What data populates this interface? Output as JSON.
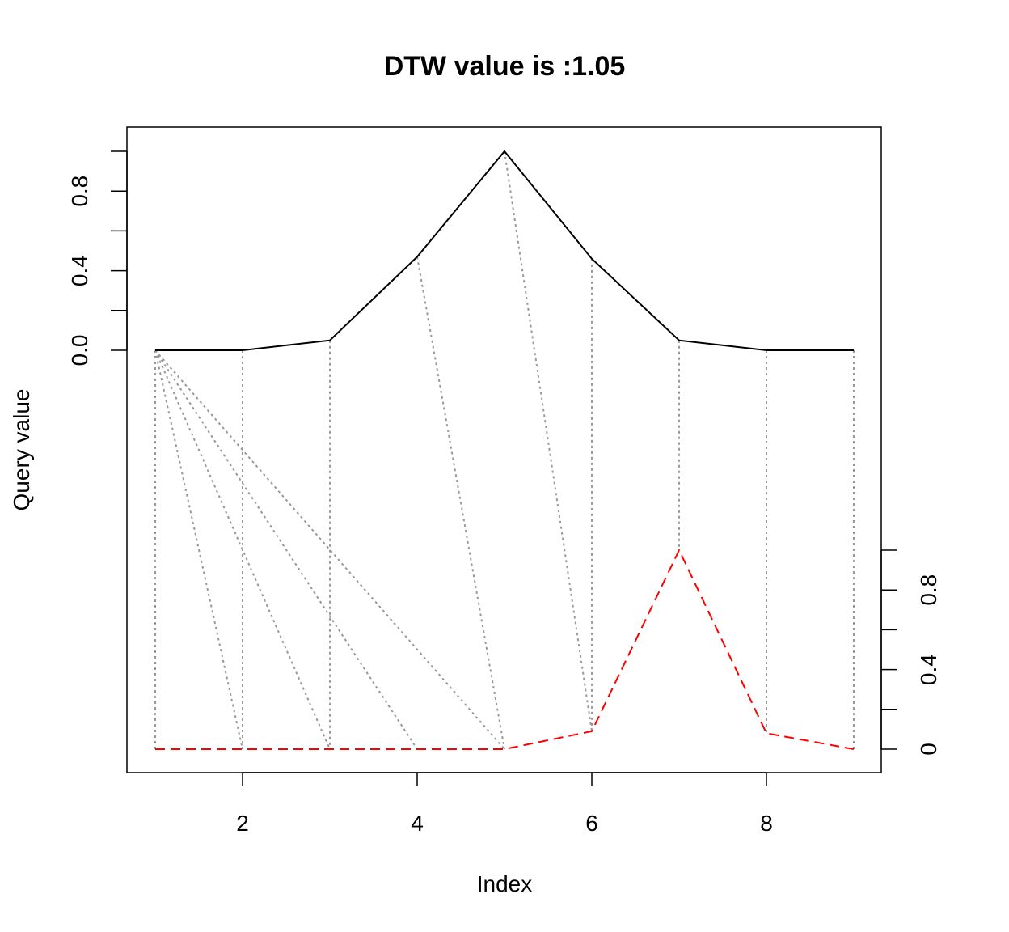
{
  "chart_data": {
    "type": "line",
    "title": "DTW value is :1.05",
    "xlabel": "Index",
    "ylabel": "Query value",
    "x": [
      1,
      2,
      3,
      4,
      5,
      6,
      7,
      8,
      9
    ],
    "xlim": [
      1,
      9
    ],
    "xticks": [
      "2",
      "4",
      "6",
      "8"
    ],
    "grid": false,
    "legend": "none",
    "series": [
      {
        "role": "query",
        "values": [
          0.0,
          0.0,
          0.05,
          0.47,
          1.0,
          0.46,
          0.05,
          0.0,
          0.0
        ],
        "color": "#000000",
        "style": "solid",
        "axis": "left",
        "axis_ticks": [
          "0.0",
          "0.4",
          "0.8"
        ]
      },
      {
        "role": "reference",
        "values": [
          0.0,
          0.0,
          0.0,
          0.0,
          0.0,
          0.09,
          1.0,
          0.08,
          0.0
        ],
        "color": "#ff0000",
        "style": "dashed",
        "axis": "right",
        "axis_ticks": [
          "0",
          "0.4",
          "0.8"
        ]
      }
    ],
    "alignment": [
      [
        1,
        1
      ],
      [
        1,
        2
      ],
      [
        1,
        3
      ],
      [
        1,
        4
      ],
      [
        1,
        5
      ],
      [
        2,
        2
      ],
      [
        3,
        3
      ],
      [
        4,
        5
      ],
      [
        5,
        6
      ],
      [
        6,
        6
      ],
      [
        7,
        7
      ],
      [
        8,
        8
      ],
      [
        9,
        9
      ]
    ],
    "alignment_color": "#999999"
  }
}
